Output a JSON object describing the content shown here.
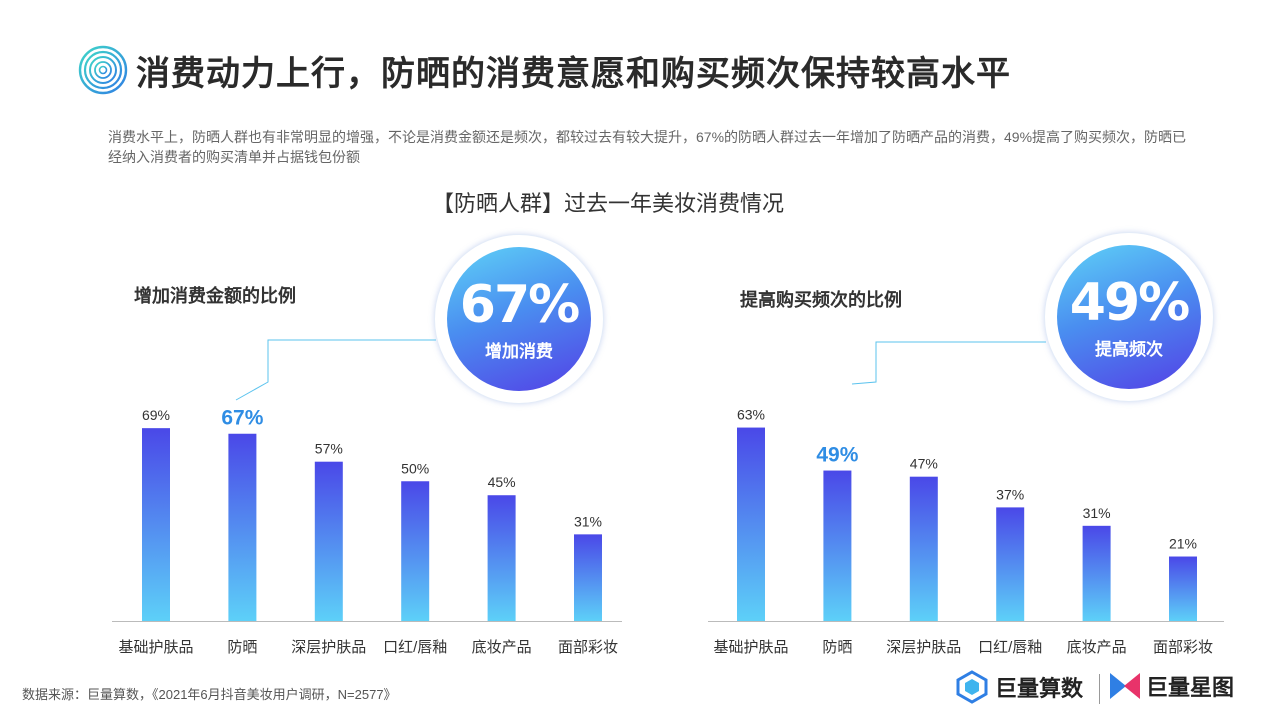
{
  "header": {
    "title": "消费动力上行，防晒的消费意愿和购买频次保持较高水平",
    "logo_icon": "spiral-logo-icon"
  },
  "subtitle": "消费水平上，防晒人群也有非常明显的增强，不论是消费金额还是频次，都较过去有较大提升，67%的防晒人群过去一年增加了防晒产品的消费，49%提高了购买频次，防晒已经纳入消费者的购买清单并占据钱包份额",
  "chart_heading": "【防晒人群】过去一年美妆消费情况",
  "colors": {
    "bar_top": "#4a48e8",
    "bar_bottom": "#5dd0f8",
    "highlight": "#2f8de4",
    "leader": "#5bc3ee"
  },
  "chart_data": [
    {
      "type": "bar",
      "title": "增加消费金额的比例",
      "categories": [
        "基础护肤品",
        "防晒",
        "深层护肤品",
        "口红/唇釉",
        "底妆产品",
        "面部彩妆"
      ],
      "values": [
        69,
        67,
        57,
        50,
        45,
        31
      ],
      "value_labels": [
        "69%",
        "67%",
        "57%",
        "50%",
        "45%",
        "31%"
      ],
      "highlight_index": 1,
      "ylim": [
        0,
        78
      ],
      "callout": {
        "value": "67%",
        "label": "增加消费"
      }
    },
    {
      "type": "bar",
      "title": "提高购买频次的比例",
      "categories": [
        "基础护肤品",
        "防晒",
        "深层护肤品",
        "口红/唇釉",
        "底妆产品",
        "面部彩妆"
      ],
      "values": [
        63,
        49,
        47,
        37,
        31,
        21
      ],
      "value_labels": [
        "63%",
        "49%",
        "47%",
        "37%",
        "31%",
        "21%"
      ],
      "highlight_index": 1,
      "ylim": [
        0,
        71
      ],
      "callout": {
        "value": "49%",
        "label": "提高频次"
      }
    }
  ],
  "footer": {
    "source": "数据来源：巨量算数，《2021年6月抖音美妆用户调研，N=2577》",
    "brand1": "巨量算数",
    "brand2": "巨量星图"
  }
}
